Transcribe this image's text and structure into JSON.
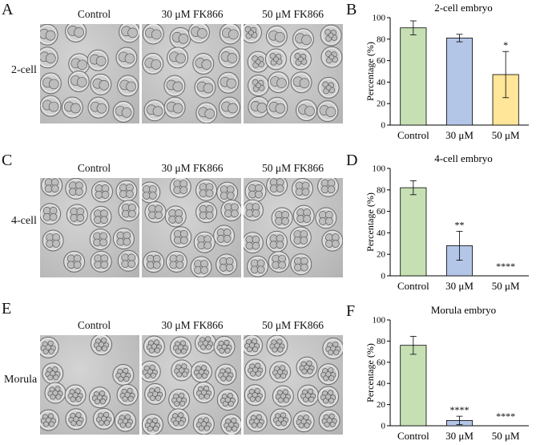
{
  "panels": [
    {
      "letter": "A",
      "row_label": "2-cell",
      "image_labels": [
        "Control",
        "30 μM FK866",
        "50 μM FK866"
      ]
    },
    {
      "letter": "C",
      "row_label": "4-cell",
      "image_labels": [
        "Control",
        "30 μM FK866",
        "50 μM FK866"
      ]
    },
    {
      "letter": "E",
      "row_label": "Morula",
      "image_labels": [
        "Control",
        "30 μM FK866",
        "50 μM FK866"
      ]
    }
  ],
  "chart_data": [
    {
      "letter": "B",
      "type": "bar",
      "title": "2-cell embryo",
      "ylabel": "Percentage (%)",
      "ylim": [
        0,
        100
      ],
      "yticks": [
        0,
        20,
        40,
        60,
        80,
        100
      ],
      "categories": [
        "Control",
        "30 μM",
        "50 μM"
      ],
      "values": [
        90.5,
        81,
        47
      ],
      "errors": [
        6.5,
        3.5,
        21.5
      ],
      "significance": [
        "",
        "",
        "*"
      ],
      "colors": [
        "#c6e0b4",
        "#b4c6e7",
        "#ffe699"
      ],
      "grid": false
    },
    {
      "letter": "D",
      "type": "bar",
      "title": "4-cell embryo",
      "ylabel": "Percentage (%)",
      "ylim": [
        0,
        100
      ],
      "yticks": [
        0,
        20,
        40,
        60,
        80,
        100
      ],
      "categories": [
        "Control",
        "30 μM",
        "50 μM"
      ],
      "values": [
        82,
        28,
        0
      ],
      "errors": [
        6.5,
        13.5,
        0
      ],
      "significance": [
        "",
        "**",
        "****"
      ],
      "colors": [
        "#c6e0b4",
        "#b4c6e7",
        "#ffe699"
      ],
      "grid": false
    },
    {
      "letter": "F",
      "type": "bar",
      "title": "Morula embryo",
      "ylabel": "Percentage (%)",
      "ylim": [
        0,
        100
      ],
      "yticks": [
        0,
        20,
        40,
        60,
        80,
        100
      ],
      "categories": [
        "Control",
        "30 μM",
        "50 μM"
      ],
      "values": [
        76,
        5,
        0
      ],
      "errors": [
        8.5,
        4,
        0
      ],
      "significance": [
        "",
        "****",
        "****"
      ],
      "colors": [
        "#c6e0b4",
        "#b4c6e7",
        "#ffe699"
      ],
      "grid": false
    }
  ]
}
